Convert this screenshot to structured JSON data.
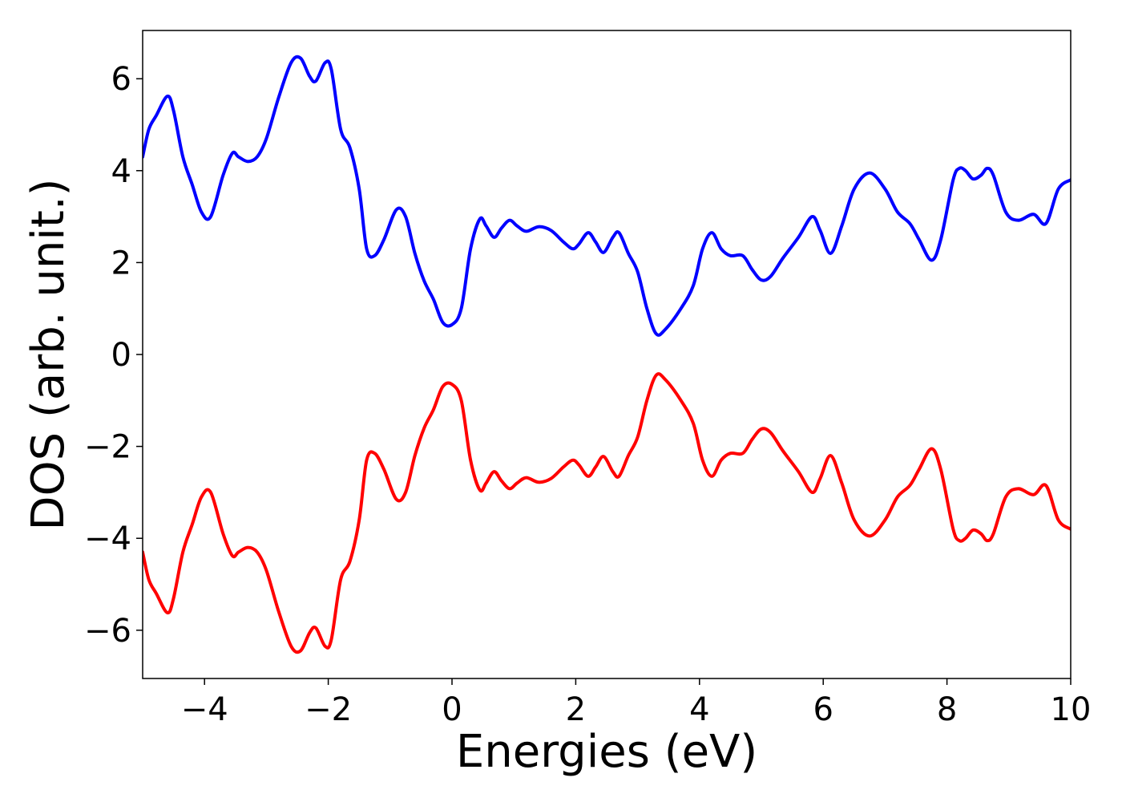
{
  "chart_data": {
    "type": "line",
    "title": "",
    "xlabel": "Energies (eV)",
    "ylabel": "DOS (arb. unit.)",
    "xlim": [
      -5,
      10
    ],
    "ylim": [
      -7.05,
      7.05
    ],
    "grid": false,
    "x_ticks": [
      -4,
      -2,
      0,
      2,
      4,
      6,
      8,
      10
    ],
    "x_tick_labels": [
      "−4",
      "−2",
      "0",
      "2",
      "4",
      "6",
      "8",
      "10"
    ],
    "y_ticks": [
      -6,
      -4,
      -2,
      0,
      2,
      4,
      6
    ],
    "y_tick_labels": [
      "−6",
      "−4",
      "−2",
      "0",
      "2",
      "4",
      "6"
    ],
    "series": [
      {
        "color": "#0000ff",
        "points": [
          [
            -5.0,
            4.3
          ],
          [
            -4.9,
            4.9
          ],
          [
            -4.78,
            5.2
          ],
          [
            -4.6,
            5.62
          ],
          [
            -4.5,
            5.3
          ],
          [
            -4.35,
            4.3
          ],
          [
            -4.2,
            3.7
          ],
          [
            -4.05,
            3.1
          ],
          [
            -3.9,
            3.0
          ],
          [
            -3.7,
            3.9
          ],
          [
            -3.55,
            4.38
          ],
          [
            -3.45,
            4.3
          ],
          [
            -3.3,
            4.2
          ],
          [
            -3.15,
            4.3
          ],
          [
            -3.0,
            4.7
          ],
          [
            -2.8,
            5.6
          ],
          [
            -2.6,
            6.35
          ],
          [
            -2.45,
            6.45
          ],
          [
            -2.3,
            6.05
          ],
          [
            -2.2,
            5.95
          ],
          [
            -2.05,
            6.35
          ],
          [
            -1.95,
            6.2
          ],
          [
            -1.8,
            4.9
          ],
          [
            -1.65,
            4.5
          ],
          [
            -1.5,
            3.6
          ],
          [
            -1.38,
            2.3
          ],
          [
            -1.25,
            2.15
          ],
          [
            -1.1,
            2.5
          ],
          [
            -0.9,
            3.15
          ],
          [
            -0.75,
            3.0
          ],
          [
            -0.6,
            2.2
          ],
          [
            -0.45,
            1.6
          ],
          [
            -0.3,
            1.2
          ],
          [
            -0.15,
            0.7
          ],
          [
            0.0,
            0.65
          ],
          [
            0.15,
            1.0
          ],
          [
            0.3,
            2.3
          ],
          [
            0.45,
            2.95
          ],
          [
            0.55,
            2.8
          ],
          [
            0.68,
            2.55
          ],
          [
            0.8,
            2.75
          ],
          [
            0.93,
            2.92
          ],
          [
            1.05,
            2.8
          ],
          [
            1.2,
            2.68
          ],
          [
            1.4,
            2.78
          ],
          [
            1.6,
            2.7
          ],
          [
            1.8,
            2.45
          ],
          [
            1.95,
            2.3
          ],
          [
            2.05,
            2.4
          ],
          [
            2.2,
            2.65
          ],
          [
            2.32,
            2.45
          ],
          [
            2.45,
            2.22
          ],
          [
            2.6,
            2.55
          ],
          [
            2.7,
            2.65
          ],
          [
            2.85,
            2.2
          ],
          [
            3.0,
            1.8
          ],
          [
            3.15,
            1.0
          ],
          [
            3.3,
            0.45
          ],
          [
            3.45,
            0.55
          ],
          [
            3.7,
            1.0
          ],
          [
            3.9,
            1.5
          ],
          [
            4.05,
            2.3
          ],
          [
            4.2,
            2.65
          ],
          [
            4.35,
            2.3
          ],
          [
            4.5,
            2.15
          ],
          [
            4.7,
            2.15
          ],
          [
            4.85,
            1.85
          ],
          [
            5.0,
            1.62
          ],
          [
            5.15,
            1.7
          ],
          [
            5.35,
            2.1
          ],
          [
            5.6,
            2.55
          ],
          [
            5.82,
            3.0
          ],
          [
            5.95,
            2.7
          ],
          [
            6.12,
            2.2
          ],
          [
            6.3,
            2.8
          ],
          [
            6.5,
            3.6
          ],
          [
            6.75,
            3.95
          ],
          [
            7.0,
            3.6
          ],
          [
            7.2,
            3.1
          ],
          [
            7.4,
            2.85
          ],
          [
            7.55,
            2.5
          ],
          [
            7.75,
            2.05
          ],
          [
            7.9,
            2.5
          ],
          [
            8.1,
            3.8
          ],
          [
            8.2,
            4.05
          ],
          [
            8.3,
            4.0
          ],
          [
            8.42,
            3.82
          ],
          [
            8.55,
            3.9
          ],
          [
            8.65,
            4.05
          ],
          [
            8.75,
            3.9
          ],
          [
            8.95,
            3.1
          ],
          [
            9.15,
            2.92
          ],
          [
            9.4,
            3.05
          ],
          [
            9.6,
            2.85
          ],
          [
            9.8,
            3.6
          ],
          [
            10.0,
            3.8
          ]
        ]
      },
      {
        "color": "#ff0000",
        "points": [
          [
            -5.0,
            -4.3
          ],
          [
            -4.9,
            -4.9
          ],
          [
            -4.78,
            -5.2
          ],
          [
            -4.6,
            -5.62
          ],
          [
            -4.5,
            -5.3
          ],
          [
            -4.35,
            -4.3
          ],
          [
            -4.2,
            -3.7
          ],
          [
            -4.05,
            -3.1
          ],
          [
            -3.9,
            -3.0
          ],
          [
            -3.7,
            -3.9
          ],
          [
            -3.55,
            -4.38
          ],
          [
            -3.45,
            -4.3
          ],
          [
            -3.3,
            -4.2
          ],
          [
            -3.15,
            -4.3
          ],
          [
            -3.0,
            -4.7
          ],
          [
            -2.8,
            -5.6
          ],
          [
            -2.6,
            -6.35
          ],
          [
            -2.45,
            -6.45
          ],
          [
            -2.3,
            -6.05
          ],
          [
            -2.2,
            -5.95
          ],
          [
            -2.05,
            -6.35
          ],
          [
            -1.95,
            -6.2
          ],
          [
            -1.8,
            -4.9
          ],
          [
            -1.65,
            -4.5
          ],
          [
            -1.5,
            -3.6
          ],
          [
            -1.38,
            -2.3
          ],
          [
            -1.25,
            -2.15
          ],
          [
            -1.1,
            -2.5
          ],
          [
            -0.9,
            -3.15
          ],
          [
            -0.75,
            -3.0
          ],
          [
            -0.6,
            -2.2
          ],
          [
            -0.45,
            -1.6
          ],
          [
            -0.3,
            -1.2
          ],
          [
            -0.15,
            -0.7
          ],
          [
            0.0,
            -0.65
          ],
          [
            0.15,
            -1.0
          ],
          [
            0.3,
            -2.3
          ],
          [
            0.45,
            -2.95
          ],
          [
            0.55,
            -2.8
          ],
          [
            0.68,
            -2.55
          ],
          [
            0.8,
            -2.75
          ],
          [
            0.93,
            -2.92
          ],
          [
            1.05,
            -2.8
          ],
          [
            1.2,
            -2.68
          ],
          [
            1.4,
            -2.78
          ],
          [
            1.6,
            -2.7
          ],
          [
            1.8,
            -2.45
          ],
          [
            1.95,
            -2.3
          ],
          [
            2.05,
            -2.4
          ],
          [
            2.2,
            -2.65
          ],
          [
            2.32,
            -2.45
          ],
          [
            2.45,
            -2.22
          ],
          [
            2.6,
            -2.55
          ],
          [
            2.7,
            -2.65
          ],
          [
            2.85,
            -2.2
          ],
          [
            3.0,
            -1.8
          ],
          [
            3.15,
            -1.0
          ],
          [
            3.3,
            -0.45
          ],
          [
            3.45,
            -0.55
          ],
          [
            3.7,
            -1.0
          ],
          [
            3.9,
            -1.5
          ],
          [
            4.05,
            -2.3
          ],
          [
            4.2,
            -2.65
          ],
          [
            4.35,
            -2.3
          ],
          [
            4.5,
            -2.15
          ],
          [
            4.7,
            -2.15
          ],
          [
            4.85,
            -1.85
          ],
          [
            5.0,
            -1.62
          ],
          [
            5.15,
            -1.7
          ],
          [
            5.35,
            -2.1
          ],
          [
            5.6,
            -2.55
          ],
          [
            5.82,
            -3.0
          ],
          [
            5.95,
            -2.7
          ],
          [
            6.12,
            -2.2
          ],
          [
            6.3,
            -2.8
          ],
          [
            6.5,
            -3.6
          ],
          [
            6.75,
            -3.95
          ],
          [
            7.0,
            -3.6
          ],
          [
            7.2,
            -3.1
          ],
          [
            7.4,
            -2.85
          ],
          [
            7.55,
            -2.5
          ],
          [
            7.75,
            -2.05
          ],
          [
            7.9,
            -2.5
          ],
          [
            8.1,
            -3.8
          ],
          [
            8.2,
            -4.05
          ],
          [
            8.3,
            -4.0
          ],
          [
            8.42,
            -3.82
          ],
          [
            8.55,
            -3.9
          ],
          [
            8.65,
            -4.05
          ],
          [
            8.75,
            -3.9
          ],
          [
            8.95,
            -3.1
          ],
          [
            9.15,
            -2.92
          ],
          [
            9.4,
            -3.05
          ],
          [
            9.6,
            -2.85
          ],
          [
            9.8,
            -3.6
          ],
          [
            10.0,
            -3.8
          ]
        ]
      }
    ]
  }
}
